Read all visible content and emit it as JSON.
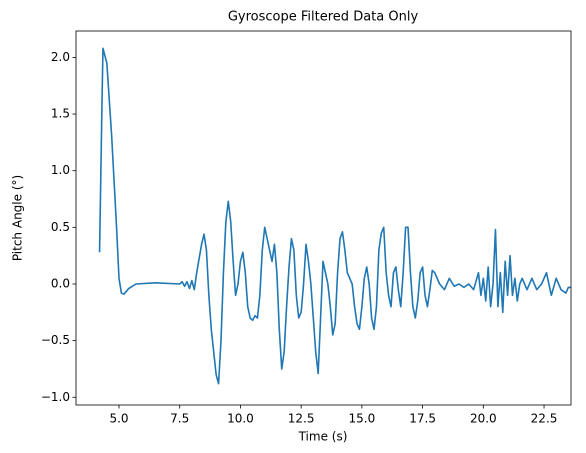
{
  "chart_data": {
    "type": "line",
    "title": "Gyroscope Filtered Data Only",
    "x_label": "Time (s)",
    "y_label": "Pitch Angle (°)",
    "xlim": [
      3.23,
      23.61
    ],
    "ylim": [
      -1.068,
      2.233
    ],
    "xticks": [
      {
        "value": 5,
        "label": "5.0"
      },
      {
        "value": 7.5,
        "label": "7.5"
      },
      {
        "value": 10,
        "label": "10.0"
      },
      {
        "value": 12.5,
        "label": "12.5"
      },
      {
        "value": 15,
        "label": "15.0"
      },
      {
        "value": 17.5,
        "label": "17.5"
      },
      {
        "value": 20,
        "label": "20.0"
      },
      {
        "value": 22.5,
        "label": "22.5"
      }
    ],
    "yticks": [
      {
        "value": -1,
        "label": "−1.0"
      },
      {
        "value": -0.5,
        "label": "−0.5"
      },
      {
        "value": 0,
        "label": "0.0"
      },
      0.5,
      {
        "value": 1,
        "label": "1.0"
      },
      1.5,
      {
        "value": 2,
        "label": "2.0"
      }
    ],
    "series": [
      {
        "name": "Pitch Angle",
        "color": "#1f77b4",
        "x": [
          4.2,
          4.3,
          4.34,
          4.5,
          4.7,
          4.9,
          5.0,
          5.1,
          5.2,
          5.4,
          5.7,
          6.5,
          7.5,
          7.6,
          7.7,
          7.8,
          7.9,
          8.0,
          8.1,
          8.2,
          8.4,
          8.5,
          8.6,
          8.7,
          8.8,
          8.9,
          9.0,
          9.1,
          9.2,
          9.3,
          9.4,
          9.5,
          9.6,
          9.7,
          9.8,
          9.9,
          10.0,
          10.1,
          10.2,
          10.3,
          10.4,
          10.5,
          10.6,
          10.7,
          10.8,
          10.9,
          11.0,
          11.1,
          11.2,
          11.3,
          11.4,
          11.5,
          11.6,
          11.7,
          11.8,
          11.9,
          12.0,
          12.1,
          12.2,
          12.3,
          12.4,
          12.5,
          12.6,
          12.7,
          12.8,
          12.9,
          13.0,
          13.1,
          13.2,
          13.3,
          13.4,
          13.5,
          13.6,
          13.7,
          13.8,
          13.9,
          14.0,
          14.1,
          14.2,
          14.3,
          14.4,
          14.5,
          14.6,
          14.7,
          14.8,
          14.9,
          15.0,
          15.1,
          15.2,
          15.3,
          15.4,
          15.5,
          15.6,
          15.7,
          15.8,
          15.9,
          16.0,
          16.1,
          16.2,
          16.3,
          16.4,
          16.5,
          16.6,
          16.7,
          16.8,
          16.9,
          17.0,
          17.1,
          17.2,
          17.3,
          17.4,
          17.5,
          17.6,
          17.7,
          17.8,
          17.9,
          18.0,
          18.2,
          18.4,
          18.6,
          18.8,
          19.0,
          19.2,
          19.4,
          19.6,
          19.8,
          19.9,
          20.0,
          20.1,
          20.2,
          20.3,
          20.4,
          20.5,
          20.6,
          20.7,
          20.8,
          20.9,
          21.0,
          21.1,
          21.2,
          21.3,
          21.4,
          21.5,
          21.6,
          21.8,
          22.0,
          22.2,
          22.4,
          22.6,
          22.8,
          23.0,
          23.2,
          23.4,
          23.5,
          23.6
        ],
        "values": [
          0.28,
          1.6,
          2.08,
          1.95,
          1.3,
          0.5,
          0.05,
          -0.08,
          -0.09,
          -0.04,
          0.0,
          0.01,
          0.0,
          0.02,
          -0.02,
          0.02,
          -0.04,
          0.03,
          -0.05,
          0.1,
          0.35,
          0.44,
          0.3,
          -0.1,
          -0.4,
          -0.6,
          -0.8,
          -0.88,
          -0.5,
          0.1,
          0.55,
          0.73,
          0.55,
          0.2,
          -0.1,
          0.0,
          0.2,
          0.28,
          0.1,
          -0.2,
          -0.3,
          -0.32,
          -0.28,
          -0.3,
          -0.1,
          0.3,
          0.5,
          0.4,
          0.3,
          0.2,
          0.35,
          0.1,
          -0.4,
          -0.75,
          -0.6,
          -0.2,
          0.15,
          0.4,
          0.3,
          -0.1,
          -0.3,
          -0.25,
          0.0,
          0.35,
          0.2,
          0.0,
          -0.3,
          -0.6,
          -0.79,
          -0.3,
          0.2,
          0.1,
          0.0,
          -0.2,
          -0.45,
          -0.35,
          0.1,
          0.4,
          0.46,
          0.3,
          0.1,
          0.05,
          0.0,
          -0.2,
          -0.35,
          -0.4,
          -0.2,
          0.05,
          0.15,
          0.0,
          -0.3,
          -0.4,
          -0.2,
          0.3,
          0.45,
          0.5,
          0.1,
          -0.1,
          -0.2,
          0.1,
          0.15,
          -0.05,
          -0.2,
          0.1,
          0.5,
          0.5,
          0.1,
          -0.2,
          -0.3,
          -0.15,
          0.1,
          0.15,
          -0.1,
          -0.2,
          -0.05,
          0.12,
          0.1,
          0.0,
          -0.05,
          0.05,
          -0.02,
          0.0,
          -0.03,
          0.0,
          -0.05,
          0.1,
          -0.1,
          0.05,
          -0.15,
          0.15,
          -0.2,
          0.0,
          0.48,
          -0.2,
          0.1,
          -0.25,
          0.2,
          -0.1,
          0.25,
          -0.1,
          0.05,
          -0.15,
          0.0,
          0.05,
          -0.05,
          0.05,
          -0.05,
          0.0,
          0.1,
          -0.1,
          0.05,
          -0.05,
          -0.08,
          -0.03,
          -0.03
        ]
      }
    ]
  }
}
